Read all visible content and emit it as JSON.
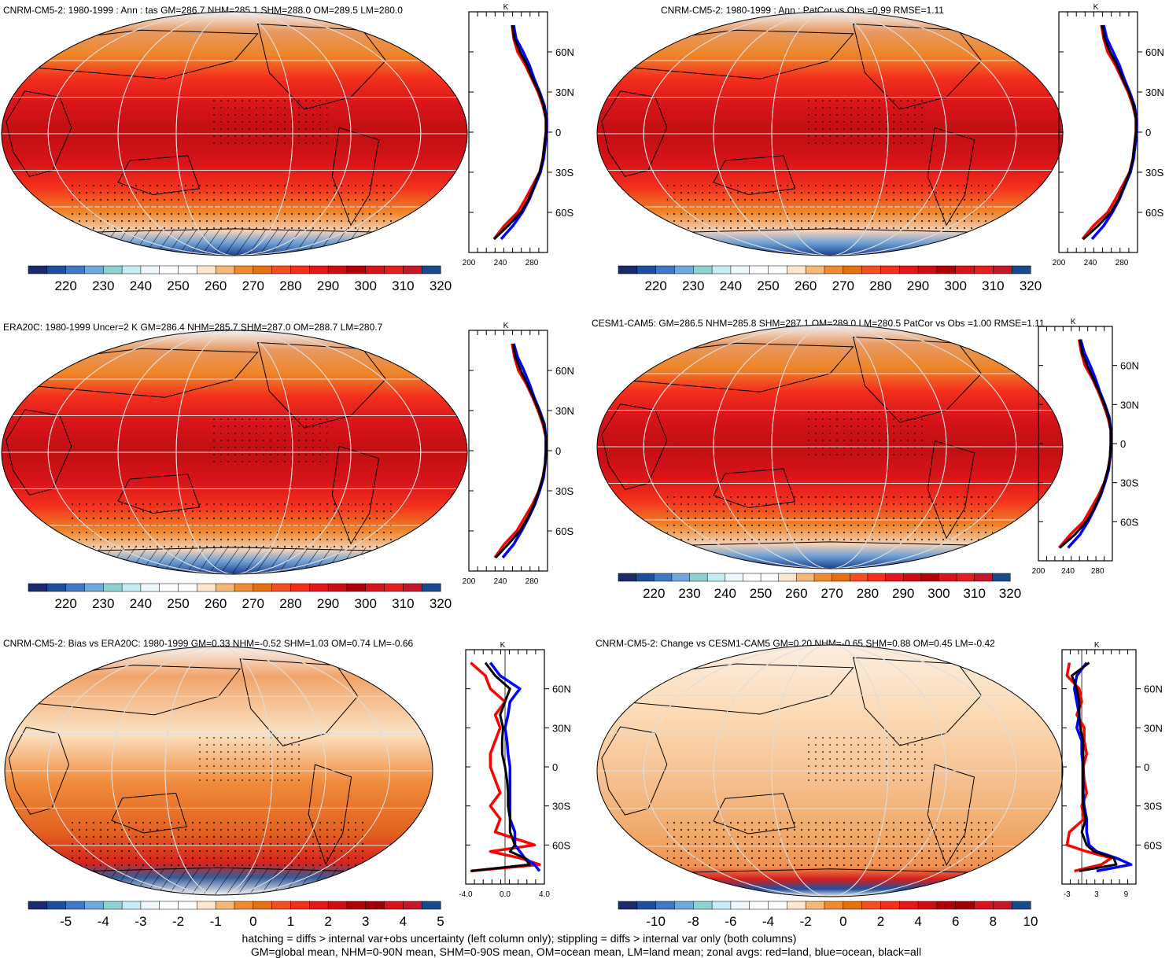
{
  "footer": {
    "line1": "hatching = diffs > internal var+obs uncertainty (left column only); stippling = diffs > internal var only (both columns)",
    "line2": "GM=global mean, NHM=0-90N mean, SHM=0-90S mean, OM=ocean mean, LM=land mean; zonal avgs: red=land, blue=ocean, black=all"
  },
  "colors": {
    "land": "#ff0000",
    "ocean": "#0000ff",
    "all": "#000000"
  },
  "chart_data": [
    {
      "type": "heatmap",
      "title": "CNRM-CM5-2: 1980-1999 : Ann : tas GM=286.7 NHM=285.1 SHM=288.0 OM=289.5 LM=280.0",
      "colorbar_ticks": [
        "220",
        "230",
        "240",
        "250",
        "260",
        "270",
        "280",
        "290",
        "300",
        "310",
        "320"
      ],
      "zonal": {
        "unit": "K",
        "xticks": [
          "200",
          "240",
          "280"
        ],
        "yticks": [
          "60N",
          "30N",
          "0",
          "30S",
          "60S"
        ],
        "xlim": [
          200,
          300
        ],
        "lat": [
          -80,
          -70,
          -60,
          -50,
          -40,
          -30,
          -20,
          -10,
          0,
          10,
          20,
          30,
          40,
          50,
          60,
          70,
          80
        ],
        "land": [
          232,
          245,
          262,
          272,
          281,
          290,
          294,
          296,
          298,
          298,
          294,
          288,
          280,
          272,
          262,
          257,
          255
        ],
        "ocean": [
          241,
          256,
          268,
          277,
          284,
          291,
          295,
          297,
          299,
          299,
          296,
          290,
          283,
          277,
          269,
          260,
          257
        ],
        "all": [
          232,
          250,
          266,
          276,
          283,
          290,
          294,
          296,
          298,
          298,
          295,
          289,
          281,
          274,
          265,
          258,
          255
        ]
      }
    },
    {
      "type": "heatmap",
      "title": "CNRM-CM5-2: 1980-1999 : Ann : PatCor vs Obs =0.99 RMSE=1.11",
      "colorbar_ticks": [
        "220",
        "230",
        "240",
        "250",
        "260",
        "270",
        "280",
        "290",
        "300",
        "310",
        "320"
      ],
      "zonal": {
        "unit": "K",
        "xticks": [
          "200",
          "240",
          "280"
        ],
        "yticks": [
          "60N",
          "30N",
          "0",
          "30S",
          "60S"
        ],
        "xlim": [
          200,
          300
        ],
        "lat": [
          -80,
          -70,
          -60,
          -50,
          -40,
          -30,
          -20,
          -10,
          0,
          10,
          20,
          30,
          40,
          50,
          60,
          70,
          80
        ],
        "land": [
          230,
          244,
          262,
          272,
          281,
          290,
          294,
          296,
          298,
          298,
          294,
          288,
          280,
          272,
          262,
          257,
          254
        ],
        "ocean": [
          242,
          257,
          268,
          277,
          284,
          291,
          295,
          297,
          299,
          299,
          296,
          290,
          283,
          277,
          269,
          261,
          257
        ],
        "all": [
          231,
          250,
          266,
          276,
          283,
          290,
          294,
          296,
          298,
          298,
          295,
          289,
          281,
          274,
          265,
          258,
          255
        ]
      }
    },
    {
      "type": "heatmap",
      "title": "ERA20C: 1980-1999 Uncer=2 K GM=286.4 NHM=285.7 SHM=287.0 OM=288.7 LM=280.7",
      "colorbar_ticks": [
        "220",
        "230",
        "240",
        "250",
        "260",
        "270",
        "280",
        "290",
        "300",
        "310",
        "320"
      ],
      "zonal": {
        "unit": "K",
        "xticks": [
          "200",
          "240",
          "280"
        ],
        "yticks": [
          "60N",
          "30N",
          "0",
          "30S",
          "60S"
        ],
        "xlim": [
          200,
          300
        ],
        "lat": [
          -80,
          -70,
          -60,
          -50,
          -40,
          -30,
          -20,
          -10,
          0,
          10,
          20,
          30,
          40,
          50,
          60,
          70,
          80
        ],
        "land": [
          233,
          245,
          261,
          271,
          281,
          289,
          294,
          297,
          298,
          298,
          294,
          288,
          281,
          273,
          263,
          258,
          255
        ],
        "ocean": [
          243,
          257,
          267,
          276,
          284,
          290,
          295,
          297,
          298,
          298,
          296,
          290,
          283,
          277,
          270,
          262,
          257
        ],
        "all": [
          234,
          250,
          265,
          275,
          283,
          289,
          294,
          297,
          298,
          298,
          295,
          289,
          282,
          274,
          266,
          259,
          256
        ]
      }
    },
    {
      "type": "heatmap",
      "title": "CESM1-CAM5: GM=286.5 NHM=285.8 SHM=287.1 OM=289.0 LM=280.5 PatCor vs Obs =1.00 RMSE=1.11",
      "colorbar_ticks": [
        "220",
        "230",
        "240",
        "250",
        "260",
        "270",
        "280",
        "290",
        "300",
        "310",
        "320"
      ],
      "zonal": {
        "unit": "K",
        "xticks": [
          "200",
          "240",
          "280"
        ],
        "yticks": [
          "60N",
          "30N",
          "0",
          "30S",
          "60S"
        ],
        "xlim": [
          200,
          300
        ],
        "lat": [
          -80,
          -70,
          -60,
          -50,
          -40,
          -30,
          -20,
          -10,
          0,
          10,
          20,
          30,
          40,
          50,
          60,
          70,
          80
        ],
        "land": [
          228,
          243,
          261,
          271,
          281,
          289,
          294,
          297,
          298,
          298,
          294,
          288,
          281,
          273,
          263,
          258,
          255
        ],
        "ocean": [
          240,
          256,
          267,
          276,
          284,
          290,
          295,
          297,
          298,
          298,
          296,
          290,
          283,
          277,
          270,
          262,
          257
        ],
        "all": [
          229,
          249,
          265,
          275,
          283,
          289,
          294,
          297,
          298,
          298,
          295,
          289,
          282,
          274,
          266,
          259,
          256
        ]
      }
    },
    {
      "type": "heatmap",
      "title": "CNRM-CM5-2: Bias vs ERA20C: 1980-1999 GM=0.33 NHM=-0.52 SHM=1.03 OM=0.74 LM=-0.66",
      "colorbar_ticks": [
        "-5",
        "-4",
        "-3",
        "-2",
        "-1",
        "0",
        "1",
        "2",
        "3",
        "4",
        "5"
      ],
      "zonal": {
        "unit": "K",
        "xticks": [
          "-4.0",
          "0.0",
          "4.0"
        ],
        "yticks": [
          "60N",
          "30N",
          "0",
          "30S",
          "60S"
        ],
        "xlim": [
          -4,
          4
        ],
        "lat": [
          -80,
          -75,
          -70,
          -65,
          -60,
          -50,
          -40,
          -30,
          -20,
          -10,
          0,
          10,
          20,
          30,
          40,
          50,
          60,
          70,
          80
        ],
        "land": [
          -3.5,
          3.5,
          1.5,
          -1.5,
          3.0,
          -1.0,
          -0.5,
          -1.5,
          -0.5,
          -1.0,
          -1.5,
          -1.5,
          -1.0,
          -0.5,
          -1.0,
          0.0,
          -1.5,
          -2.0,
          -3.5
        ],
        "ocean": [
          3.5,
          3.0,
          2.0,
          1.5,
          1.0,
          1.0,
          0.5,
          0.5,
          0.5,
          0.5,
          0.5,
          0.3,
          0.2,
          0.0,
          0.3,
          0.5,
          1.5,
          -0.5,
          -1.5
        ],
        "all": [
          -3.5,
          2.5,
          2.0,
          0.5,
          1.0,
          0.5,
          0.5,
          0.3,
          0.3,
          0.2,
          0.0,
          -0.3,
          -0.3,
          -0.2,
          -0.5,
          0.0,
          0.5,
          -1.0,
          -2.0
        ]
      }
    },
    {
      "type": "heatmap",
      "title": "CNRM-CM5-2: Change vs CESM1-CAM5 GM=0.20 NHM=-0.65 SHM=0.88 OM=0.45 LM=-0.42",
      "colorbar_ticks": [
        "-10",
        "-8",
        "-6",
        "-4",
        "-2",
        "0",
        "2",
        "4",
        "6",
        "8",
        "10"
      ],
      "zonal": {
        "unit": "K",
        "xticks": [
          "-3",
          "3",
          "9"
        ],
        "yticks": [
          "60N",
          "30N",
          "0",
          "30S",
          "60S"
        ],
        "xlim": [
          -4,
          11
        ],
        "lat": [
          -80,
          -75,
          -70,
          -65,
          -60,
          -50,
          -40,
          -30,
          -20,
          -10,
          0,
          10,
          20,
          30,
          40,
          50,
          60,
          70,
          80
        ],
        "land": [
          -1.5,
          4.0,
          6.0,
          1.0,
          -3.0,
          -2.5,
          0.5,
          0.0,
          1.0,
          0.5,
          0.3,
          1.0,
          0.5,
          0.5,
          -1.0,
          0.0,
          -0.5,
          -3.0,
          -2.5
        ],
        "ocean": [
          3.0,
          10.0,
          7.0,
          3.0,
          1.5,
          1.0,
          1.0,
          0.5,
          0.3,
          0.3,
          0.3,
          0.0,
          0.0,
          -1.0,
          -0.5,
          -1.0,
          -1.5,
          -1.0,
          1.0
        ],
        "all": [
          -0.5,
          7.0,
          6.5,
          2.5,
          1.0,
          0.0,
          0.8,
          0.3,
          0.3,
          0.3,
          0.3,
          0.3,
          0.3,
          -0.3,
          -0.5,
          -0.5,
          -1.0,
          -2.0,
          1.5
        ]
      }
    }
  ]
}
